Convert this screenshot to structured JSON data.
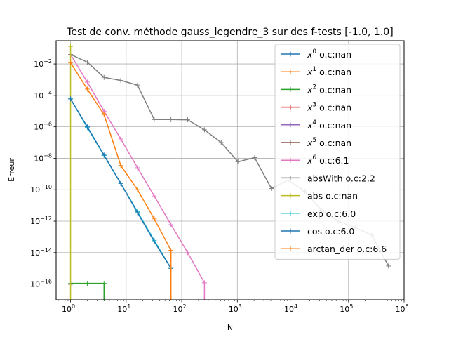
{
  "chart_data": {
    "type": "line",
    "title": "Test de conv. méthode gauss_legendre_3 sur des f-tests [-1.0, 1.0]",
    "xlabel": "N",
    "ylabel": "Erreur",
    "xscale": "log",
    "yscale": "log",
    "xlim": [
      0.55,
      1000000
    ],
    "ylim": [
      1e-17,
      0.3
    ],
    "grid": true,
    "legend_position": "top-right",
    "x_ticks": [
      {
        "value": 1,
        "base": "10",
        "exp": "0"
      },
      {
        "value": 10,
        "base": "10",
        "exp": "1"
      },
      {
        "value": 100,
        "base": "10",
        "exp": "2"
      },
      {
        "value": 1000,
        "base": "10",
        "exp": "3"
      },
      {
        "value": 10000,
        "base": "10",
        "exp": "4"
      },
      {
        "value": 100000,
        "base": "10",
        "exp": "5"
      },
      {
        "value": 1000000,
        "base": "10",
        "exp": "6"
      }
    ],
    "y_ticks": [
      {
        "value": 1e-16,
        "base": "10",
        "exp": "−16"
      },
      {
        "value": 1e-14,
        "base": "10",
        "exp": "−14"
      },
      {
        "value": 1e-12,
        "base": "10",
        "exp": "−12"
      },
      {
        "value": 1e-10,
        "base": "10",
        "exp": "−10"
      },
      {
        "value": 1e-08,
        "base": "10",
        "exp": "−8"
      },
      {
        "value": 1e-06,
        "base": "10",
        "exp": "−6"
      },
      {
        "value": 0.0001,
        "base": "10",
        "exp": "−4"
      },
      {
        "value": 0.01,
        "base": "10",
        "exp": "−2"
      }
    ],
    "series": [
      {
        "name": "x^0 o.c:nan",
        "legend_base": "x",
        "legend_sup": "0",
        "legend_rest": " o.c:nan",
        "color": "#1f77b4",
        "x": [
          1
        ],
        "y": [
          1e-16
        ]
      },
      {
        "name": "x^1 o.c:nan",
        "legend_base": "x",
        "legend_sup": "1",
        "legend_rest": " o.c:nan",
        "color": "#ff7f0e",
        "x": [
          1
        ],
        "y": [
          1e-16
        ]
      },
      {
        "name": "x^2 o.c:nan",
        "legend_base": "x",
        "legend_sup": "2",
        "legend_rest": " o.c:nan",
        "color": "#2ca02c",
        "x": [
          1,
          2,
          4,
          4
        ],
        "y": [
          1.1e-16,
          1.1e-16,
          1.1e-16,
          1e-20
        ]
      },
      {
        "name": "x^3 o.c:nan",
        "legend_base": "x",
        "legend_sup": "3",
        "legend_rest": " o.c:nan",
        "color": "#d62728",
        "x": [
          1
        ],
        "y": [
          1e-16
        ]
      },
      {
        "name": "x^4 o.c:nan",
        "legend_base": "x",
        "legend_sup": "4",
        "legend_rest": " o.c:nan",
        "color": "#9467bd",
        "x": [
          1
        ],
        "y": [
          1e-16
        ]
      },
      {
        "name": "x^5 o.c:nan",
        "legend_base": "x",
        "legend_sup": "5",
        "legend_rest": " o.c:nan",
        "color": "#8c564b",
        "x": [
          1
        ],
        "y": [
          1e-16
        ]
      },
      {
        "name": "x^6 o.c:6.1",
        "legend_base": "x",
        "legend_sup": "6",
        "legend_rest": " o.c:6.1",
        "color": "#e377c2",
        "x": [
          1,
          2,
          4,
          8,
          16,
          32,
          64,
          128,
          256,
          256
        ],
        "y": [
          0.04,
          0.0007,
          1e-05,
          1.7e-07,
          2.5e-09,
          4e-11,
          6e-13,
          1e-14,
          1.2e-16,
          1e-20
        ]
      },
      {
        "name": "absWith o.c:2.2",
        "legend_base": "absWith",
        "legend_sup": "",
        "legend_rest": " o.c:2.2",
        "color": "#7f7f7f",
        "x": [
          1,
          2,
          4,
          8,
          16,
          32,
          64,
          128,
          256,
          512,
          1024,
          2048,
          4096,
          8192,
          16384,
          32768,
          65536,
          131072,
          262144,
          524288
        ],
        "y": [
          0.04,
          0.013,
          0.0014,
          0.0009,
          0.00045,
          2.9e-06,
          2.9e-06,
          2.8e-06,
          6.5e-07,
          1e-07,
          6e-09,
          1.1e-08,
          1.2e-10,
          4e-10,
          8e-11,
          5e-12,
          1e-12,
          4e-13,
          1.3e-13,
          1.4e-15
        ]
      },
      {
        "name": "abs o.c:nan",
        "legend_base": "abs",
        "legend_sup": "",
        "legend_rest": " o.c:nan",
        "color": "#bcbd22",
        "x": [
          1,
          1
        ],
        "y": [
          0.13,
          1e-20
        ]
      },
      {
        "name": "exp o.c:6.0",
        "legend_base": "exp",
        "legend_sup": "",
        "legend_rest": " o.c:6.0",
        "color": "#17becf",
        "x": [
          1,
          2,
          4,
          8,
          16,
          32,
          64
        ],
        "y": [
          6e-05,
          9e-07,
          1.5e-08,
          2.5e-10,
          4e-12,
          6e-14,
          1e-15
        ]
      },
      {
        "name": "cos o.c:6.0",
        "legend_base": "cos",
        "legend_sup": "",
        "legend_rest": " o.c:6.0",
        "color": "#1f77b4",
        "x": [
          1,
          2,
          4,
          8,
          16,
          32,
          64
        ],
        "y": [
          6e-05,
          1e-06,
          1.6e-08,
          2.5e-10,
          3.5e-12,
          5e-14,
          1e-15
        ]
      },
      {
        "name": "arctan_der o.c:6.6",
        "legend_base": "arctan_der",
        "legend_sup": "",
        "legend_rest": " o.c:6.6",
        "color": "#ff7f0e",
        "x": [
          1,
          2,
          4,
          8,
          16,
          32,
          64,
          64
        ],
        "y": [
          0.012,
          0.00025,
          6e-06,
          3.5e-09,
          1e-10,
          1.4e-12,
          1.4e-14,
          1e-20
        ]
      }
    ]
  }
}
